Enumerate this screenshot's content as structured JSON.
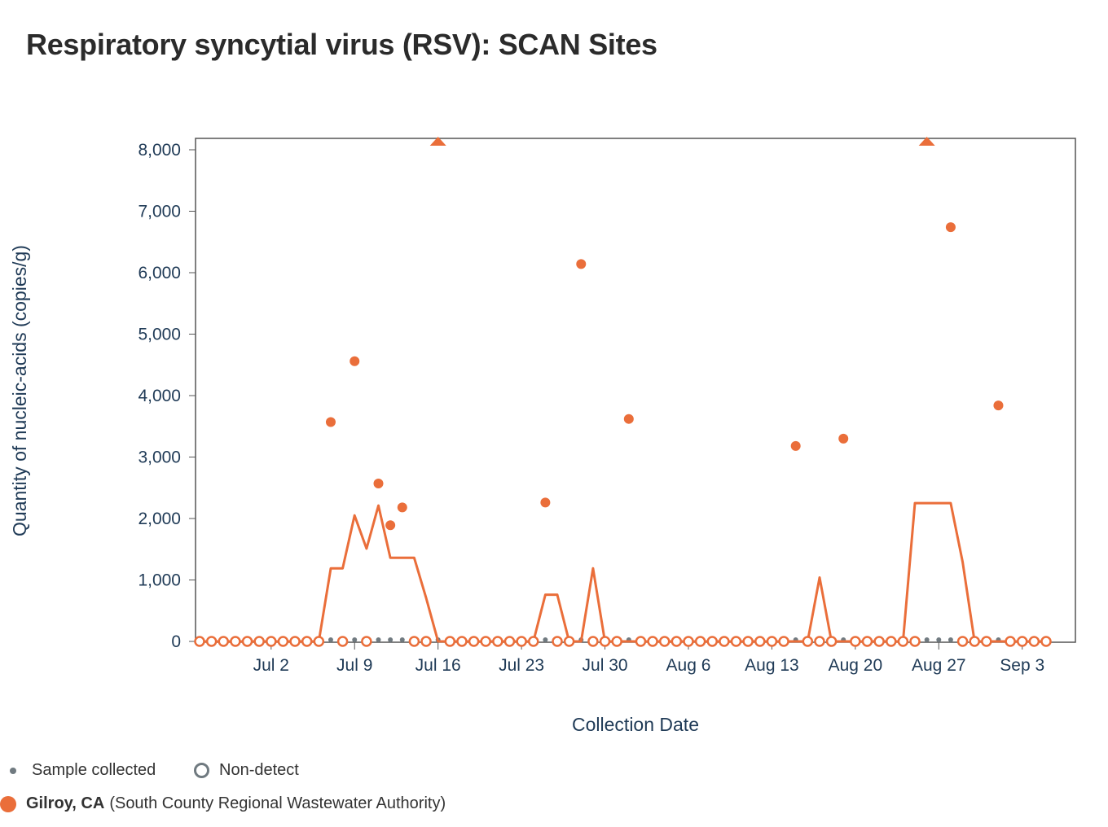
{
  "title": "Respiratory syncytial virus (RSV): SCAN Sites",
  "legend": {
    "sample_collected": "Sample collected",
    "non_detect": "Non-detect",
    "site_name": "Gilroy, CA",
    "site_detail": "(South County Regional Wastewater Authority)",
    "marker_color": "#707a80"
  },
  "chart_data": {
    "type": "scatter",
    "title": "Respiratory syncytial virus (RSV): SCAN Sites",
    "xlabel": "Collection Date",
    "ylabel": "Quantity of nucleic-acids (copies/g)",
    "xlim": [
      "2023-06-26",
      "2023-09-05"
    ],
    "ylim": [
      0,
      8000
    ],
    "x_ticks": [
      {
        "date": "2023-07-02",
        "label": "Jul 2"
      },
      {
        "date": "2023-07-09",
        "label": "Jul 9"
      },
      {
        "date": "2023-07-16",
        "label": "Jul 16"
      },
      {
        "date": "2023-07-23",
        "label": "Jul 23"
      },
      {
        "date": "2023-07-30",
        "label": "Jul 30"
      },
      {
        "date": "2023-08-06",
        "label": "Aug 6"
      },
      {
        "date": "2023-08-13",
        "label": "Aug 13"
      },
      {
        "date": "2023-08-20",
        "label": "Aug 20"
      },
      {
        "date": "2023-08-27",
        "label": "Aug 27"
      },
      {
        "date": "2023-09-03",
        "label": "Sep 3"
      }
    ],
    "y_ticks": [
      {
        "value": 0,
        "label": "0"
      },
      {
        "value": 1000,
        "label": "1,000"
      },
      {
        "value": 2000,
        "label": "2,000"
      },
      {
        "value": 3000,
        "label": "3,000"
      },
      {
        "value": 4000,
        "label": "4,000"
      },
      {
        "value": 5000,
        "label": "5,000"
      },
      {
        "value": 6000,
        "label": "6,000"
      },
      {
        "value": 7000,
        "label": "7,000"
      },
      {
        "value": 8000,
        "label": "8,000"
      }
    ],
    "grid": false,
    "legend_position": "bottom-left",
    "series": [
      {
        "name": "Gilroy, CA (South County Regional Wastewater Authority)",
        "color": "#ea6e3a",
        "detected": [
          {
            "x": "2023-07-07",
            "y": 3570
          },
          {
            "x": "2023-07-09",
            "y": 4560
          },
          {
            "x": "2023-07-11",
            "y": 2570
          },
          {
            "x": "2023-07-12",
            "y": 1890
          },
          {
            "x": "2023-07-13",
            "y": 2180
          },
          {
            "x": "2023-07-25",
            "y": 2260
          },
          {
            "x": "2023-07-28",
            "y": 6140
          },
          {
            "x": "2023-08-01",
            "y": 3620
          },
          {
            "x": "2023-08-15",
            "y": 3180
          },
          {
            "x": "2023-08-19",
            "y": 3300
          },
          {
            "x": "2023-08-28",
            "y": 6740
          },
          {
            "x": "2023-09-01",
            "y": 3840
          }
        ],
        "above_range": [
          "2023-07-16",
          "2023-08-26"
        ],
        "non_detect": [
          "2023-06-26",
          "2023-06-27",
          "2023-06-28",
          "2023-06-29",
          "2023-06-30",
          "2023-07-01",
          "2023-07-02",
          "2023-07-03",
          "2023-07-04",
          "2023-07-05",
          "2023-07-06",
          "2023-07-08",
          "2023-07-10",
          "2023-07-14",
          "2023-07-15",
          "2023-07-17",
          "2023-07-18",
          "2023-07-19",
          "2023-07-20",
          "2023-07-21",
          "2023-07-22",
          "2023-07-23",
          "2023-07-24",
          "2023-07-26",
          "2023-07-27",
          "2023-07-29",
          "2023-07-30",
          "2023-07-31",
          "2023-08-02",
          "2023-08-03",
          "2023-08-04",
          "2023-08-05",
          "2023-08-06",
          "2023-08-07",
          "2023-08-08",
          "2023-08-09",
          "2023-08-10",
          "2023-08-11",
          "2023-08-12",
          "2023-08-13",
          "2023-08-14",
          "2023-08-16",
          "2023-08-17",
          "2023-08-18",
          "2023-08-20",
          "2023-08-21",
          "2023-08-22",
          "2023-08-23",
          "2023-08-24",
          "2023-08-25",
          "2023-08-29",
          "2023-08-30",
          "2023-08-31",
          "2023-09-02",
          "2023-09-03",
          "2023-09-04",
          "2023-09-05"
        ],
        "trend_line": [
          {
            "x": "2023-06-26",
            "y": 0
          },
          {
            "x": "2023-07-05",
            "y": 0
          },
          {
            "x": "2023-07-06",
            "y": 0
          },
          {
            "x": "2023-07-07",
            "y": 1190
          },
          {
            "x": "2023-07-08",
            "y": 1190
          },
          {
            "x": "2023-07-09",
            "y": 2050
          },
          {
            "x": "2023-07-10",
            "y": 1510
          },
          {
            "x": "2023-07-11",
            "y": 2210
          },
          {
            "x": "2023-07-12",
            "y": 1360
          },
          {
            "x": "2023-07-13",
            "y": 1360
          },
          {
            "x": "2023-07-14",
            "y": 1360
          },
          {
            "x": "2023-07-15",
            "y": 710
          },
          {
            "x": "2023-07-16",
            "y": 0
          },
          {
            "x": "2023-07-24",
            "y": 0
          },
          {
            "x": "2023-07-25",
            "y": 760
          },
          {
            "x": "2023-07-26",
            "y": 760
          },
          {
            "x": "2023-07-27",
            "y": 0
          },
          {
            "x": "2023-07-28",
            "y": 0
          },
          {
            "x": "2023-07-29",
            "y": 1190
          },
          {
            "x": "2023-07-30",
            "y": 0
          },
          {
            "x": "2023-08-16",
            "y": 0
          },
          {
            "x": "2023-08-17",
            "y": 1040
          },
          {
            "x": "2023-08-18",
            "y": 0
          },
          {
            "x": "2023-08-24",
            "y": 0
          },
          {
            "x": "2023-08-25",
            "y": 2250
          },
          {
            "x": "2023-08-26",
            "y": 2250
          },
          {
            "x": "2023-08-27",
            "y": 2250
          },
          {
            "x": "2023-08-28",
            "y": 2250
          },
          {
            "x": "2023-08-29",
            "y": 1290
          },
          {
            "x": "2023-08-30",
            "y": 0
          },
          {
            "x": "2023-09-05",
            "y": 0
          }
        ]
      }
    ]
  }
}
